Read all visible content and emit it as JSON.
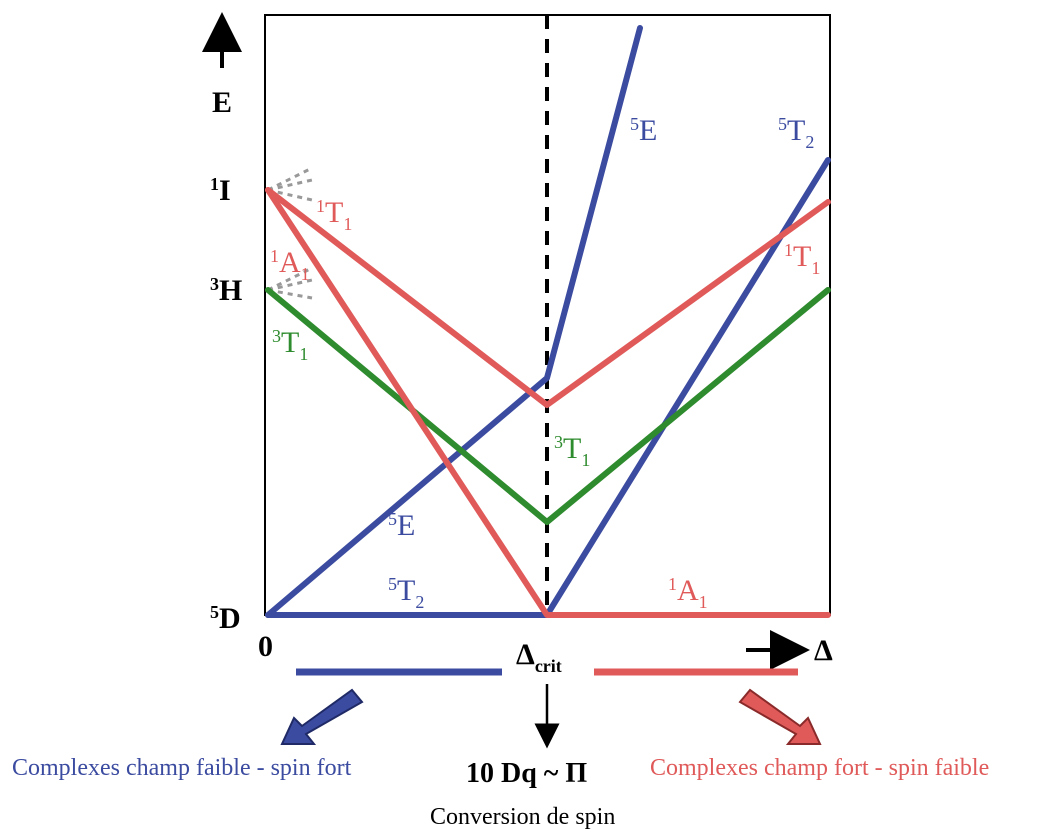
{
  "axis": {
    "energy_label": "E",
    "origin_label": "0",
    "delta_label": "Δ",
    "crit_main": "Δ",
    "crit_sub": "crit"
  },
  "free_ion_terms": [
    {
      "sup": "1",
      "base": "I"
    },
    {
      "sup": "3",
      "base": "H"
    },
    {
      "sup": "5",
      "base": "D"
    }
  ],
  "state_labels": {
    "1T1_left": {
      "sup": "1",
      "base": "T",
      "sub": "1",
      "color": "#e05a5a"
    },
    "1A1_left": {
      "sup": "1",
      "base": "A",
      "sub": "1",
      "color": "#e05a5a"
    },
    "3T1_left": {
      "sup": "3",
      "base": "T",
      "sub": "1",
      "color": "#2e8b2e"
    },
    "5E_mid": {
      "sup": "5",
      "base": "E",
      "sub": "",
      "color": "#3b4ba0"
    },
    "5T2_bottom": {
      "sup": "5",
      "base": "T",
      "sub": "2",
      "color": "#3b4ba0"
    },
    "5E_top": {
      "sup": "5",
      "base": "E",
      "sub": "",
      "color": "#3b4ba0"
    },
    "5T2_right": {
      "sup": "5",
      "base": "T",
      "sub": "2",
      "color": "#3b4ba0"
    },
    "1T1_right": {
      "sup": "1",
      "base": "T",
      "sub": "1",
      "color": "#e05a5a"
    },
    "3T1_mid": {
      "sup": "3",
      "base": "T",
      "sub": "1",
      "color": "#2e8b2e"
    },
    "1A1_right": {
      "sup": "1",
      "base": "A",
      "sub": "1",
      "color": "#e05a5a"
    }
  },
  "captions": {
    "weak_field": "Complexes champ faible - spin fort",
    "strong_field": "Complexes champ fort - spin faible",
    "equality": "10 Dq  ~ Π",
    "conversion": "Conversion de spin"
  },
  "colors": {
    "blue": "#3b4ba0",
    "red": "#e05a5a",
    "green": "#2e8b2e",
    "black": "#000000"
  }
}
